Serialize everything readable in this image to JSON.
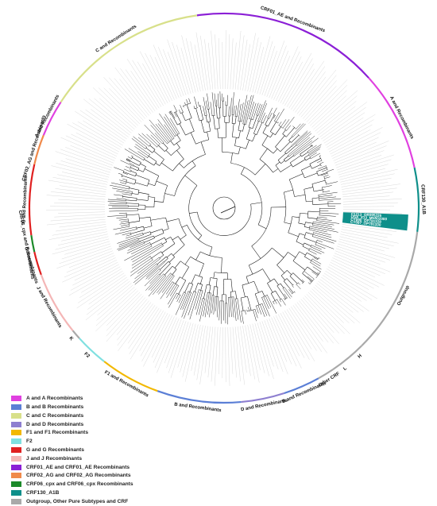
{
  "figure": {
    "tree_center_label": "",
    "highlighted_taxa": [
      "C1213_OR095226",
      "USA_X13_MN502000",
      "CY090_OP781328",
      "CY097_OP781330"
    ]
  },
  "arcs": [
    {
      "label": "CRF01_AE and Recombinants",
      "color": "#8B1FD6"
    },
    {
      "label": "A and Recombinants",
      "color": "#E040E0"
    },
    {
      "label": "CRF130_A1B",
      "color": "#0E8F8A"
    },
    {
      "label": "Outgroup",
      "color": "#A9A9A9"
    },
    {
      "label": "H",
      "color": "#A9A9A9"
    },
    {
      "label": "L",
      "color": "#A9A9A9"
    },
    {
      "label": "Other CRF",
      "color": "#A9A9A9"
    },
    {
      "label": "B and Recombinants",
      "color": "#5B7FD6"
    },
    {
      "label": "D and Recombinants",
      "color": "#8E7FD0"
    },
    {
      "label": "B and Recombinants",
      "color": "#5B7FD6"
    },
    {
      "label": "F1 and Recombinants",
      "color": "#F2B800"
    },
    {
      "label": "F2",
      "color": "#7FE0E0"
    },
    {
      "label": "K",
      "color": "#A9A9A9"
    },
    {
      "label": "J and Recombinants",
      "color": "#F4B6B6"
    },
    {
      "label": "G Recombinants",
      "color": "#E02020"
    },
    {
      "label": "CRF06_cpx and Recombinants",
      "color": "#1C8A2A"
    },
    {
      "label": "G and Recombinants",
      "color": "#E02020"
    },
    {
      "label": "CRF02_AG and Recombinants",
      "color": "#F08A4B"
    },
    {
      "label": "A and Recombinants",
      "color": "#E040E0"
    },
    {
      "label": "C and Recombinants",
      "color": "#D8E08A"
    }
  ],
  "legend": [
    {
      "label": "A and A Recombinants",
      "color": "#E040E0"
    },
    {
      "label": "B and B Recombinants",
      "color": "#5B7FD6"
    },
    {
      "label": "C and C Recombinants",
      "color": "#D8E08A"
    },
    {
      "label": "D and D Recombinants",
      "color": "#8E7FD0"
    },
    {
      "label": "F1 and F1 Recombinants",
      "color": "#F2B800"
    },
    {
      "label": "F2",
      "color": "#7FE0E0"
    },
    {
      "label": "G and G Recombinants",
      "color": "#E02020"
    },
    {
      "label": "J and J Recombinants",
      "color": "#F4B6B6"
    },
    {
      "label": "CRF01_AE and CRF01_AE Recombinants",
      "color": "#8B1FD6"
    },
    {
      "label": "CRF02_AG and CRF02_AG Recombinants",
      "color": "#F08A4B"
    },
    {
      "label": "CRF06_cpx and CRF06_cpx Recombinants",
      "color": "#1C8A2A"
    },
    {
      "label": "CRF130_A1B",
      "color": "#0E8F8A"
    },
    {
      "label": "Outgroup, Other Pure Subtypes and CRF",
      "color": "#A9A9A9"
    }
  ]
}
